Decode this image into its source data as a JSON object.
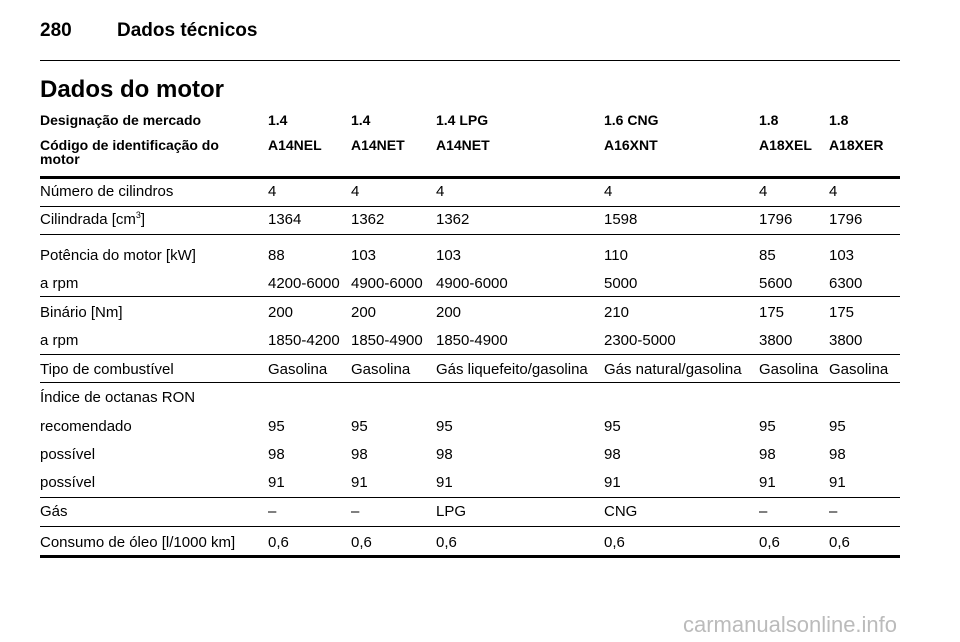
{
  "header": {
    "page": "280",
    "section": "Dados técnicos"
  },
  "title": "Dados do motor",
  "table": {
    "head": [
      {
        "label": "Designação de mercado",
        "values": [
          "1.4",
          "1.4",
          "1.4 LPG",
          "1.6 CNG",
          "1.8",
          "1.8"
        ]
      },
      {
        "label": "Código de identificação do motor",
        "values": [
          "A14NEL",
          "A14NET",
          "A14NET",
          "A16XNT",
          "A18XEL",
          "A18XER"
        ]
      }
    ],
    "rows": [
      {
        "label": "Número de cilindros",
        "values": [
          "4",
          "4",
          "4",
          "4",
          "4",
          "4"
        ]
      },
      {
        "label": {
          "text": "Cilindrada [cm",
          "sup": "3",
          "after": "]"
        },
        "values": [
          "1364",
          "1362",
          "1362",
          "1598",
          "1796",
          "1796"
        ]
      },
      {
        "label": "Potência do motor [kW]",
        "values": [
          "88",
          "103",
          "103",
          "110",
          "85",
          "103"
        ]
      },
      {
        "label": "a rpm",
        "values": [
          "4200-6000",
          "4900-6000",
          "4900-6000",
          "5000",
          "5600",
          "6300"
        ]
      },
      {
        "label": "Binário [Nm]",
        "values": [
          "200",
          "200",
          "200",
          "210",
          "175",
          "175"
        ]
      },
      {
        "label": "a rpm",
        "values": [
          "1850-4200",
          "1850-4900",
          "1850-4900",
          "2300-5000",
          "3800",
          "3800"
        ]
      },
      {
        "label": "Tipo de combustível",
        "values": [
          "Gasolina",
          "Gasolina",
          "Gás liquefeito/gasolina",
          "Gás natural/gasolina",
          "Gasolina",
          "Gasolina"
        ]
      },
      {
        "label": "Índice de octanas RON",
        "values": []
      },
      {
        "label": "recomendado",
        "values": [
          "95",
          "95",
          "95",
          "95",
          "95",
          "95"
        ]
      },
      {
        "label": "possível",
        "values": [
          "98",
          "98",
          "98",
          "98",
          "98",
          "98"
        ]
      },
      {
        "label": "possível",
        "values": [
          "91",
          "91",
          "91",
          "91",
          "91",
          "91"
        ]
      },
      {
        "label": "Gás",
        "values": [
          "–",
          "–",
          "LPG",
          "CNG",
          "–",
          "–"
        ]
      },
      {
        "label": "Consumo de óleo [l/1000 km]",
        "values": [
          "0,6",
          "0,6",
          "0,6",
          "0,6",
          "0,6",
          "0,6"
        ]
      }
    ]
  },
  "watermark": "carmanualsonline.info"
}
